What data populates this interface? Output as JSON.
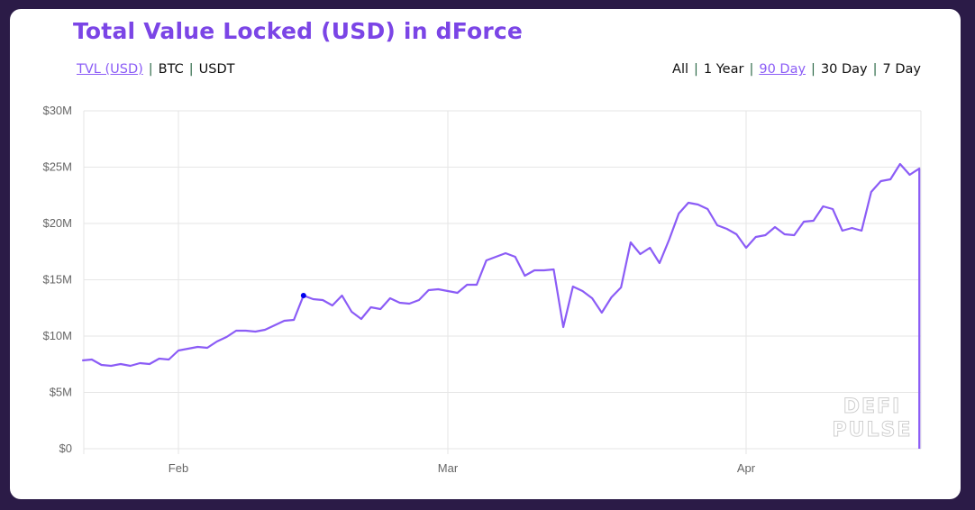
{
  "card": {
    "title": "Total Value Locked (USD) in dForce",
    "metric_options": [
      {
        "label": "TVL (USD)",
        "active": true
      },
      {
        "label": "BTC",
        "active": false
      },
      {
        "label": "USDT",
        "active": false
      }
    ],
    "range_options": [
      {
        "label": "All",
        "active": false
      },
      {
        "label": "1 Year",
        "active": false
      },
      {
        "label": "90 Day",
        "active": true
      },
      {
        "label": "30 Day",
        "active": false
      },
      {
        "label": "7 Day",
        "active": false
      }
    ],
    "separator": "|",
    "watermark": [
      "DEFI",
      "PULSE"
    ]
  },
  "chart_data": {
    "type": "line",
    "title": "Total Value Locked (USD) in dForce",
    "xlabel": "",
    "ylabel": "",
    "y_unit": "USD millions",
    "ylim": [
      0,
      30
    ],
    "yticks": [
      0,
      5,
      10,
      15,
      20,
      25,
      30
    ],
    "ytick_labels": [
      "$0",
      "$5M",
      "$10M",
      "$15M",
      "$20M",
      "$25M",
      "$30M"
    ],
    "xticks": [
      "Feb 1",
      "Mar 1",
      "Apr 1"
    ],
    "xtick_labels": [
      "Feb",
      "Mar",
      "Apr"
    ],
    "grid": true,
    "line_color": "#8b5cf6",
    "highlight_color": "#0000ee",
    "highlighted_point": "Feb 14",
    "x": [
      "Jan 22",
      "Jan 23",
      "Jan 24",
      "Jan 25",
      "Jan 26",
      "Jan 27",
      "Jan 28",
      "Jan 29",
      "Jan 30",
      "Jan 31",
      "Feb 1",
      "Feb 2",
      "Feb 3",
      "Feb 4",
      "Feb 5",
      "Feb 6",
      "Feb 7",
      "Feb 8",
      "Feb 9",
      "Feb 10",
      "Feb 11",
      "Feb 12",
      "Feb 13",
      "Feb 14",
      "Feb 15",
      "Feb 16",
      "Feb 17",
      "Feb 18",
      "Feb 19",
      "Feb 20",
      "Feb 21",
      "Feb 22",
      "Feb 23",
      "Feb 24",
      "Feb 25",
      "Feb 26",
      "Feb 27",
      "Feb 28",
      "Mar 1",
      "Mar 2",
      "Mar 3",
      "Mar 4",
      "Mar 5",
      "Mar 6",
      "Mar 7",
      "Mar 8",
      "Mar 9",
      "Mar 10",
      "Mar 11",
      "Mar 12",
      "Mar 13",
      "Mar 14",
      "Mar 15",
      "Mar 16",
      "Mar 17",
      "Mar 18",
      "Mar 19",
      "Mar 20",
      "Mar 21",
      "Mar 22",
      "Mar 23",
      "Mar 24",
      "Mar 25",
      "Mar 26",
      "Mar 27",
      "Mar 28",
      "Mar 29",
      "Mar 30",
      "Mar 31",
      "Apr 1",
      "Apr 2",
      "Apr 3",
      "Apr 4",
      "Apr 5",
      "Apr 6",
      "Apr 7",
      "Apr 8",
      "Apr 9",
      "Apr 10",
      "Apr 11",
      "Apr 12",
      "Apr 13",
      "Apr 14",
      "Apr 15",
      "Apr 16",
      "Apr 17",
      "Apr 18",
      "Apr 19",
      "Apr 19"
    ],
    "y": [
      7.84,
      7.92,
      7.44,
      7.36,
      7.52,
      7.36,
      7.6,
      7.52,
      8.0,
      7.92,
      8.72,
      8.88,
      9.04,
      8.96,
      9.52,
      9.92,
      10.48,
      10.48,
      10.4,
      10.56,
      10.96,
      11.36,
      11.44,
      13.6,
      13.28,
      13.2,
      12.72,
      13.6,
      12.16,
      11.52,
      12.56,
      12.4,
      13.36,
      12.96,
      12.88,
      13.2,
      14.08,
      14.16,
      14.0,
      13.84,
      14.56,
      14.56,
      16.72,
      17.04,
      17.36,
      17.04,
      15.36,
      15.84,
      15.84,
      15.92,
      10.8,
      14.4,
      14.0,
      13.36,
      12.08,
      13.44,
      14.32,
      18.32,
      17.28,
      17.84,
      16.48,
      18.56,
      20.88,
      21.84,
      21.68,
      21.28,
      19.84,
      19.52,
      19.04,
      17.84,
      18.8,
      18.96,
      19.68,
      19.04,
      18.96,
      20.16,
      20.24,
      21.52,
      21.28,
      19.36,
      19.6,
      19.36,
      22.8,
      23.76,
      23.92,
      25.28,
      24.32,
      24.88,
      0
    ]
  }
}
